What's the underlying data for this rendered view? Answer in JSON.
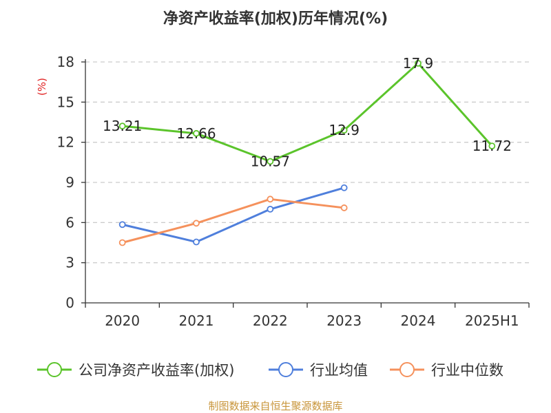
{
  "chart_data": {
    "type": "line",
    "title": "净资产收益率(加权)历年情况(%)",
    "ylabel": "(%)",
    "xlabel": "",
    "categories": [
      "2020",
      "2021",
      "2022",
      "2023",
      "2024",
      "2025H1"
    ],
    "ylim": [
      0,
      18
    ],
    "yticks": [
      0,
      3,
      6,
      9,
      12,
      15,
      18
    ],
    "grid": true,
    "legend_position": "bottom",
    "series": [
      {
        "name": "公司净资产收益率(加权)",
        "values": [
          13.21,
          12.66,
          10.57,
          12.9,
          17.9,
          11.72
        ],
        "labels": [
          "13.21",
          "12.66",
          "10.57",
          "12.9",
          "17.9",
          "11.72"
        ],
        "color": "#5bc42b",
        "show_labels": true
      },
      {
        "name": "行业均值",
        "values": [
          5.85,
          4.55,
          7.0,
          8.6,
          null,
          null
        ],
        "color": "#4f7fdc",
        "show_labels": false
      },
      {
        "name": "行业中位数",
        "values": [
          4.5,
          5.95,
          7.75,
          7.1,
          null,
          null
        ],
        "color": "#f5915c",
        "show_labels": false
      }
    ]
  },
  "source_text": "制图数据来自恒生聚源数据库",
  "colors": {
    "title": "#333333",
    "ylabel": "#e02020",
    "grid": "#cccccc",
    "axis": "#333333",
    "source": "#c8953a"
  }
}
